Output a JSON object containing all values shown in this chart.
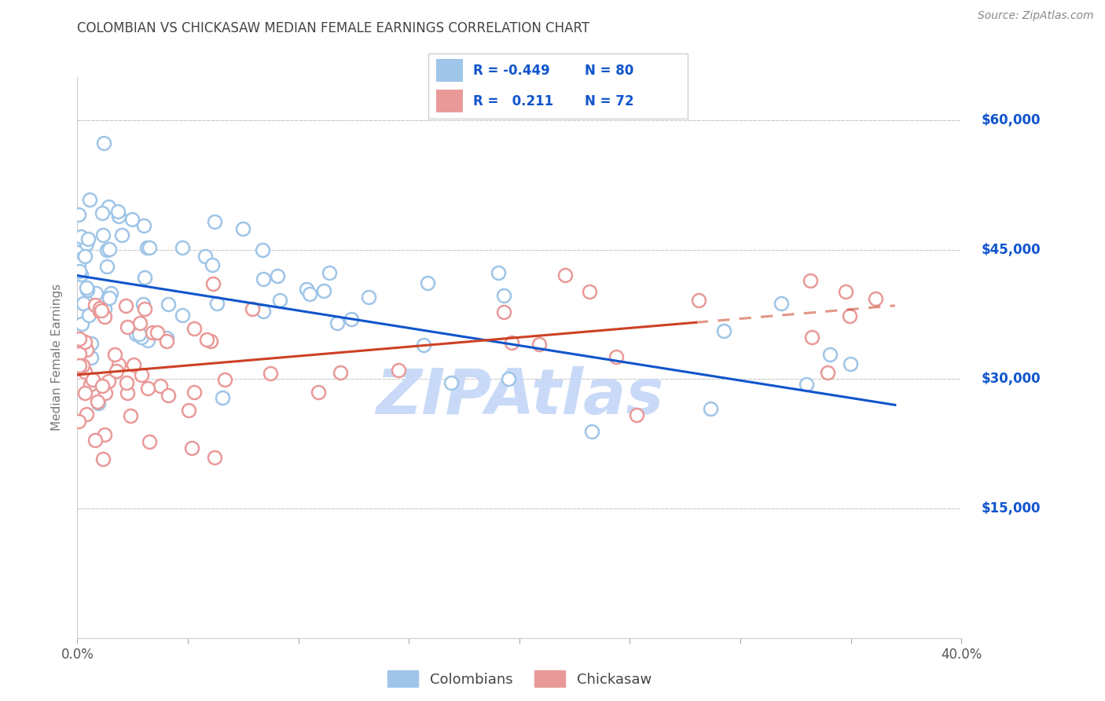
{
  "title": "COLOMBIAN VS CHICKASAW MEDIAN FEMALE EARNINGS CORRELATION CHART",
  "source": "Source: ZipAtlas.com",
  "ylabel": "Median Female Earnings",
  "y_ticks": [
    0,
    15000,
    30000,
    45000,
    60000
  ],
  "y_tick_labels": [
    "",
    "$15,000",
    "$30,000",
    "$45,000",
    "$60,000"
  ],
  "xmin": 0.0,
  "xmax": 40.0,
  "ymin": 0,
  "ymax": 65000,
  "colombian_R": -0.449,
  "colombian_N": 80,
  "chickasaw_R": 0.211,
  "chickasaw_N": 72,
  "blue_scatter_color": "#9fc5e8",
  "pink_scatter_color": "#ea9999",
  "blue_line_color": "#1155cc",
  "pink_line_color": "#cc4125",
  "pink_dash_color": "#cc4125",
  "watermark_color": "#c9daf8",
  "legend_label1": "Colombians",
  "legend_label2": "Chickasaw",
  "background_color": "#ffffff",
  "grid_color": "#cccccc",
  "title_color": "#444444",
  "label_color": "#777777",
  "right_tick_color": "#1155cc",
  "legend_border_color": "#cccccc",
  "col_intercept": 42000,
  "col_slope_per_unit": -405.4,
  "chick_intercept": 30500,
  "chick_slope_per_unit": 216.7,
  "col_noise_std": 5500,
  "chick_noise_std": 5500,
  "blue_trend_xend": 37,
  "pink_solid_xend": 28,
  "pink_dash_xend": 37
}
